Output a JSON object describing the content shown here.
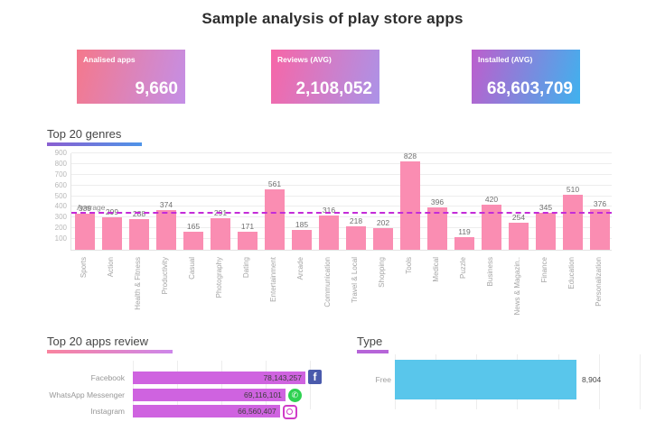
{
  "title": "Sample analysis of play store apps",
  "kpi_cards": [
    {
      "label": "Analised apps",
      "value": "9,660",
      "gradient_start": "#f5788b",
      "gradient_end": "#c48fe7"
    },
    {
      "label": "Reviews (AVG)",
      "value": "2,108,052",
      "gradient_start": "#f766a7",
      "gradient_end": "#ab93e8"
    },
    {
      "label": "Installed (AVG)",
      "value": "68,603,709",
      "gradient_start": "#bd5ecd",
      "gradient_end": "#3fb2ee"
    }
  ],
  "chart_data": [
    {
      "type": "bar",
      "title": "Top 20 genres",
      "categories": [
        "Sports",
        "Action",
        "Health & Fitness",
        "Productivity",
        "Casual",
        "Photography",
        "Dating",
        "Entertainment",
        "Arcade",
        "Communication",
        "Travel & Local",
        "Shopping",
        "Tools",
        "Medical",
        "Puzzle",
        "Business",
        "News & Magazin..",
        "Finance",
        "Education",
        "Personalization"
      ],
      "values": [
        339,
        299,
        288,
        374,
        165,
        291,
        171,
        561,
        185,
        316,
        218,
        202,
        828,
        396,
        119,
        420,
        254,
        345,
        510,
        376
      ],
      "ylim": [
        0,
        900
      ],
      "yticks": [
        100,
        200,
        300,
        400,
        500,
        600,
        700,
        800,
        900
      ],
      "grid": true,
      "average_line": {
        "label": "Average",
        "value": 333,
        "color": "#c32bd8",
        "style": "dashed"
      },
      "bar_color": "#fa8db2"
    },
    {
      "type": "bar",
      "orientation": "horizontal",
      "title": "Top 20 apps review",
      "categories": [
        "Facebook",
        "WhatsApp Messenger",
        "Instagram"
      ],
      "values": [
        78143257,
        69116101,
        66560407
      ],
      "value_labels": [
        "78,143,257",
        "69,116,101",
        "66,560,407"
      ],
      "icons": [
        "facebook",
        "whatsapp",
        "instagram"
      ],
      "bar_color": "#cf63e0",
      "grid": true,
      "grid_step": 20000000
    },
    {
      "type": "bar",
      "orientation": "horizontal",
      "title": "Type",
      "categories": [
        "Free"
      ],
      "values": [
        8904
      ],
      "value_labels": [
        "8,904"
      ],
      "bar_color": "#59c6eb",
      "grid": true,
      "grid_step": 2000,
      "xlim": [
        0,
        13200
      ]
    }
  ]
}
